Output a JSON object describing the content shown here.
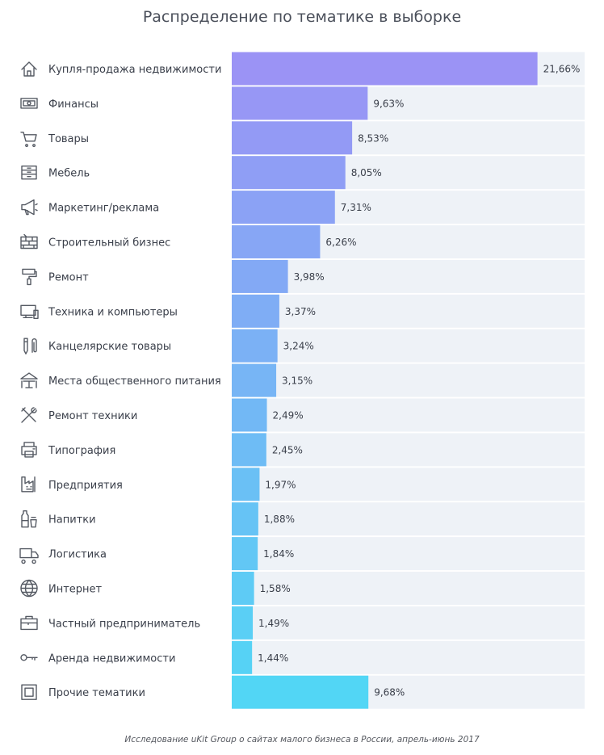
{
  "title": "Распределение по тематике в выборке",
  "footer": "Исследование uKit Group о сайтах малого бизнеса в России, апрель-июнь 2017",
  "colors": {
    "track": "#eef2f7",
    "bar_top": "#9b93f5",
    "bar_bottom": "#52d6f5"
  },
  "chart_data": {
    "type": "bar",
    "orientation": "horizontal",
    "title": "Распределение по тематике в выборке",
    "xlim": [
      0,
      25
    ],
    "grid": false,
    "categories": [
      "Купля-продажа недвижимости",
      "Финансы",
      "Товары",
      "Мебель",
      "Маркетинг/реклама",
      "Строительный бизнес",
      "Ремонт",
      "Техника и компьютеры",
      "Канцелярские товары",
      "Места общественного питания",
      "Ремонт техники",
      "Типография",
      "Предприятия",
      "Напитки",
      "Логистика",
      "Интернет",
      "Частный предприниматель",
      "Аренда недвижимости",
      "Прочие тематики"
    ],
    "values": [
      21.66,
      9.63,
      8.53,
      8.05,
      7.31,
      6.26,
      3.98,
      3.37,
      3.24,
      3.15,
      2.49,
      2.45,
      1.97,
      1.88,
      1.84,
      1.58,
      1.49,
      1.44,
      9.68
    ],
    "value_labels": [
      "21,66%",
      "9,63%",
      "8,53%",
      "8,05%",
      "7,31%",
      "6,26%",
      "3,98%",
      "3,37%",
      "3,24%",
      "3,15%",
      "2,49%",
      "2,45%",
      "1,97%",
      "1,88%",
      "1,84%",
      "1,58%",
      "1,49%",
      "1,44%",
      "9,68%"
    ],
    "icons": [
      "house-icon",
      "banknote-icon",
      "cart-icon",
      "dresser-icon",
      "megaphone-icon",
      "bricks-icon",
      "paint-roller-icon",
      "computer-icon",
      "pencil-clip-icon",
      "cafe-table-icon",
      "tools-icon",
      "printer-icon",
      "factory-icon",
      "bottle-icon",
      "truck-icon",
      "globe-icon",
      "briefcase-icon",
      "key-icon",
      "square-icon"
    ]
  }
}
